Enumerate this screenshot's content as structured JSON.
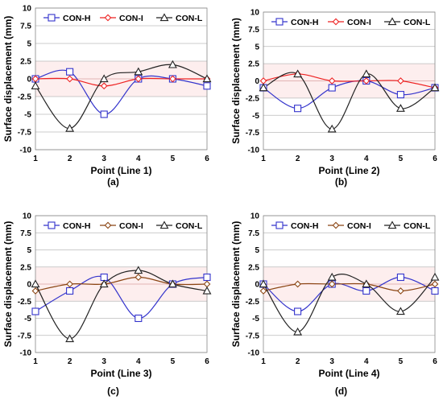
{
  "chart_data": [
    {
      "type": "line",
      "panel_label": "(a)",
      "xlabel": "Point (Line 1)",
      "ylabel": "Surface displacement (mm)",
      "categories": [
        "1",
        "2",
        "3",
        "4",
        "5",
        "6"
      ],
      "x": [
        1,
        2,
        3,
        4,
        5,
        6
      ],
      "ylim": [
        -10,
        10
      ],
      "yticks": [
        "10",
        "7.5",
        "5",
        "2.5",
        "0",
        "-2.5",
        "-5",
        "-7.5",
        "-10"
      ],
      "grid": true,
      "shaded_band": [
        -2.5,
        2.5
      ],
      "legend_position": "top",
      "series": [
        {
          "name": "CON-H",
          "color": "#3333cc",
          "marker": "square",
          "values": [
            0,
            1,
            -5,
            0,
            0,
            -1
          ]
        },
        {
          "name": "CON-I",
          "color": "#ee2222",
          "marker": "diamond",
          "values": [
            0,
            0,
            -1,
            0,
            0,
            0
          ]
        },
        {
          "name": "CON-L",
          "color": "#222222",
          "marker": "triangle",
          "values": [
            -1,
            -7,
            0,
            1,
            2,
            0
          ]
        }
      ]
    },
    {
      "type": "line",
      "panel_label": "(b)",
      "xlabel": "Point (Line 2)",
      "ylabel": "Surface displacement (mm)",
      "categories": [
        "1",
        "2",
        "3",
        "4",
        "5",
        "6"
      ],
      "x": [
        1,
        2,
        3,
        4,
        5,
        6
      ],
      "ylim": [
        -10,
        10
      ],
      "yticks": [
        "10",
        "7.5",
        "5",
        "2.5",
        "0",
        "-2.5",
        "-5",
        "-7.5",
        "-10"
      ],
      "grid": true,
      "shaded_band": [
        -2.5,
        2.5
      ],
      "legend_position": "top",
      "series": [
        {
          "name": "CON-H",
          "color": "#3333cc",
          "marker": "square",
          "values": [
            -1,
            -4,
            -1,
            0,
            -2,
            -1
          ]
        },
        {
          "name": "CON-I",
          "color": "#ee2222",
          "marker": "diamond",
          "values": [
            0,
            1,
            0,
            0,
            0,
            -1
          ]
        },
        {
          "name": "CON-L",
          "color": "#222222",
          "marker": "triangle",
          "values": [
            -1,
            1,
            -7,
            1,
            -4,
            -1
          ]
        }
      ]
    },
    {
      "type": "line",
      "panel_label": "(c)",
      "xlabel": "Point (Line 3)",
      "ylabel": "Surface displacement (mm)",
      "categories": [
        "1",
        "2",
        "3",
        "4",
        "5",
        "6"
      ],
      "x": [
        1,
        2,
        3,
        4,
        5,
        6
      ],
      "ylim": [
        -10,
        10
      ],
      "yticks": [
        "10",
        "7.5",
        "5",
        "2.5",
        "0",
        "-2.5",
        "-5",
        "-7.5",
        "-10"
      ],
      "grid": true,
      "shaded_band": [
        -2.5,
        2.5
      ],
      "legend_position": "top",
      "series": [
        {
          "name": "CON-H",
          "color": "#3333cc",
          "marker": "square",
          "values": [
            -4,
            -1,
            1,
            -5,
            0,
            1
          ]
        },
        {
          "name": "CON-I",
          "color": "#8b4513",
          "marker": "diamond",
          "values": [
            -1,
            0,
            0,
            1,
            0,
            0
          ]
        },
        {
          "name": "CON-L",
          "color": "#222222",
          "marker": "triangle",
          "values": [
            0,
            -8,
            0,
            2,
            0,
            -1
          ]
        }
      ]
    },
    {
      "type": "line",
      "panel_label": "(d)",
      "xlabel": "Point (Line 4)",
      "ylabel": "Surface displacement (mm)",
      "categories": [
        "1",
        "2",
        "3",
        "4",
        "5",
        "6"
      ],
      "x": [
        1,
        2,
        3,
        4,
        5,
        6
      ],
      "ylim": [
        -10,
        10
      ],
      "yticks": [
        "10",
        "7.5",
        "5",
        "2.5",
        "0",
        "-2.5",
        "-5",
        "-7.5",
        "-10"
      ],
      "grid": true,
      "shaded_band": [
        -2.5,
        2.5
      ],
      "legend_position": "top",
      "series": [
        {
          "name": "CON-H",
          "color": "#3333cc",
          "marker": "square",
          "values": [
            0,
            -4,
            0,
            -1,
            1,
            -1
          ]
        },
        {
          "name": "CON-I",
          "color": "#8b4513",
          "marker": "diamond",
          "values": [
            -1,
            0,
            0,
            0,
            -1,
            0
          ]
        },
        {
          "name": "CON-L",
          "color": "#222222",
          "marker": "triangle",
          "values": [
            0,
            -7,
            1,
            0,
            -4,
            1
          ]
        }
      ]
    }
  ]
}
